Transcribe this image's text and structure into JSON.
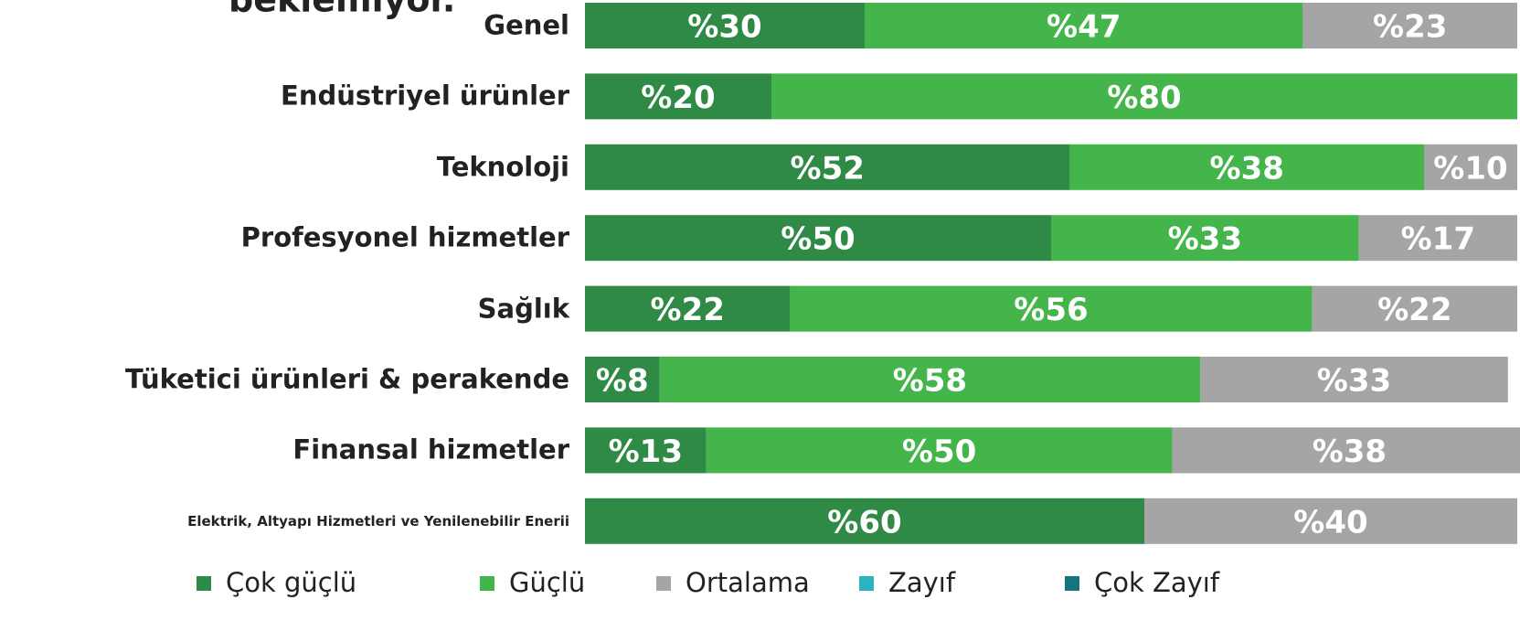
{
  "chart_data": {
    "type": "stacked-bar",
    "orientation": "horizontal",
    "title": "beklemiyor.",
    "categories": [
      "Genel",
      "Endüstriyel ürünler",
      "Teknoloji",
      "Profesyonel hizmetler",
      "Sağlık",
      "Tüketici ürünleri & perakende",
      "Finansal hizmetler",
      "Elektrik, Altyapı Hizmetleri ve Yenilenebilir Enerii"
    ],
    "xlim": [
      0,
      100
    ],
    "legend": "bottom",
    "series": [
      {
        "name": "Çok güçlü",
        "color": "#2f8a45",
        "values": [
          30,
          20,
          52,
          50,
          22,
          8,
          13,
          60
        ],
        "value_labels": [
          "%30",
          "%20",
          "%52",
          "%50",
          "%22",
          "%8",
          "%13",
          "%60"
        ]
      },
      {
        "name": "Güçlü",
        "color": "#44b54b",
        "values": [
          47,
          80,
          38,
          33,
          56,
          58,
          50,
          0
        ],
        "value_labels": [
          "%47",
          "%80",
          "%38",
          "%33",
          "%56",
          "%58",
          "%50",
          null
        ]
      },
      {
        "name": "Ortalama",
        "color": "#a5a5a5",
        "values": [
          23,
          0,
          10,
          17,
          22,
          33,
          38,
          40
        ],
        "value_labels": [
          "%23",
          null,
          "%10",
          "%17",
          "%22",
          "%33",
          "%38",
          "%40"
        ]
      },
      {
        "name": "Zayıf",
        "color": "#2bb3c4",
        "values": [
          0,
          0,
          0,
          0,
          0,
          0,
          0,
          0
        ],
        "value_labels": [
          null,
          null,
          null,
          null,
          null,
          null,
          null,
          null
        ]
      },
      {
        "name": "Çok Zayıf",
        "color": "#17747c",
        "values": [
          0,
          0,
          0,
          0,
          0,
          0,
          0,
          0
        ],
        "value_labels": [
          null,
          null,
          null,
          null,
          null,
          null,
          null,
          null
        ]
      }
    ]
  }
}
